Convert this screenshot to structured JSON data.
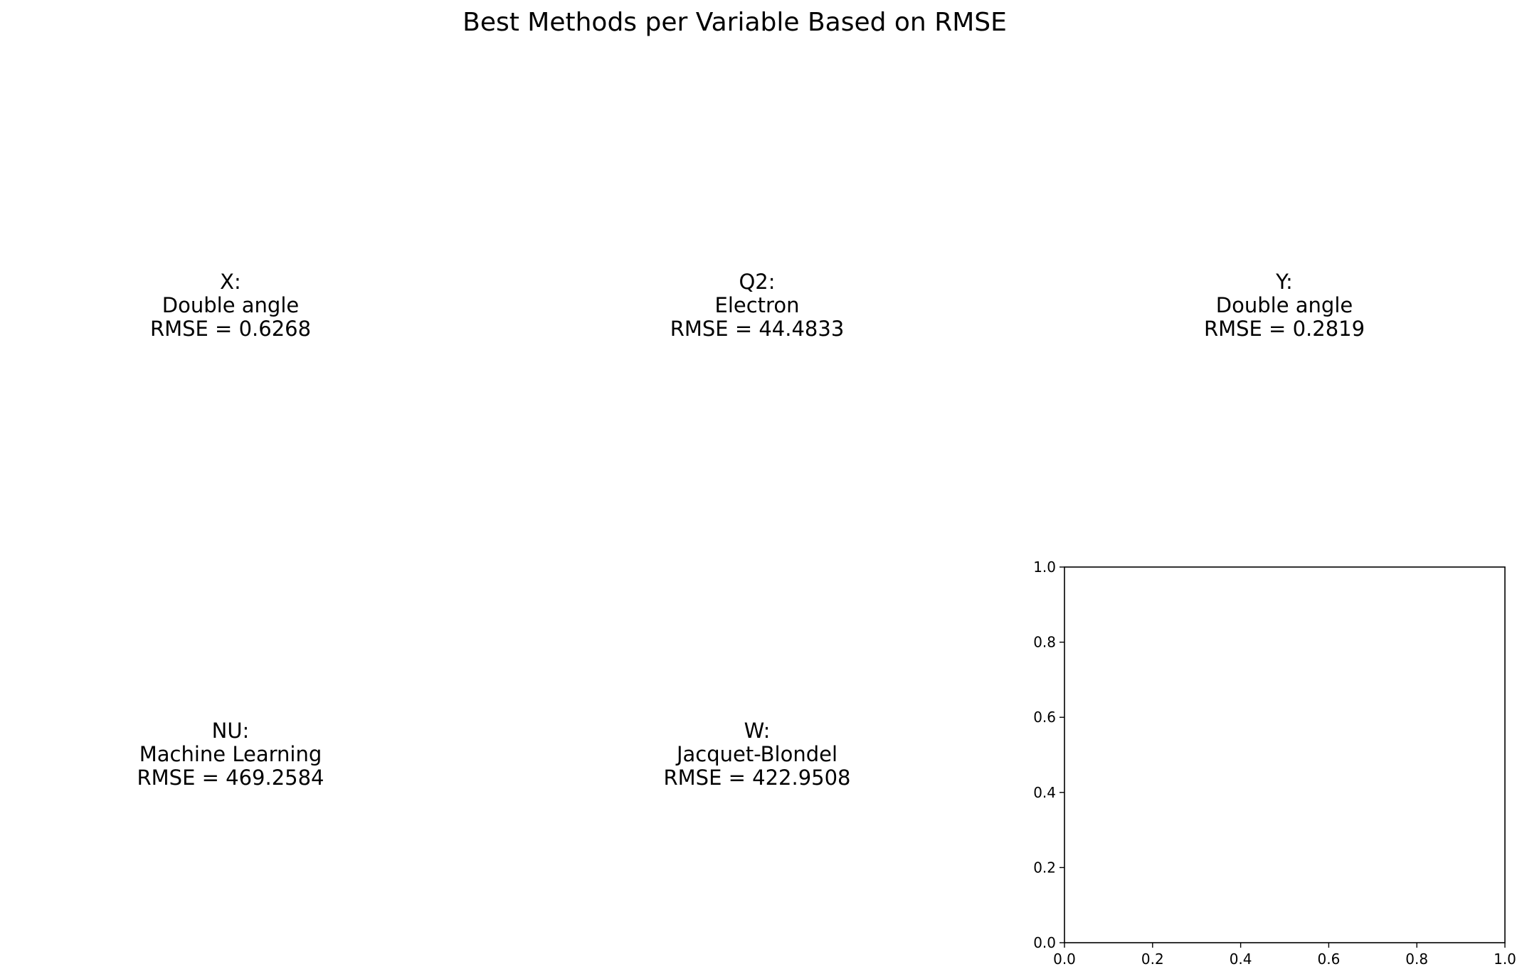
{
  "chart_data": {
    "type": "table",
    "title": "Best Methods per Variable Based on RMSE",
    "panels": [
      {
        "variable": "X:",
        "method": "Double angle",
        "rmse": "RMSE = 0.6268"
      },
      {
        "variable": "Q2:",
        "method": "Electron",
        "rmse": "RMSE = 44.4833"
      },
      {
        "variable": "Y:",
        "method": "Double angle",
        "rmse": "RMSE = 0.2819"
      },
      {
        "variable": "NU:",
        "method": "Machine Learning",
        "rmse": "RMSE = 469.2584"
      },
      {
        "variable": "W:",
        "method": "Jacquet-Blondel",
        "rmse": "RMSE = 422.9508"
      }
    ],
    "empty_axes": {
      "xlim": [
        0.0,
        1.0
      ],
      "ylim": [
        0.0,
        1.0
      ],
      "xticks": [
        "0.0",
        "0.2",
        "0.4",
        "0.6",
        "0.8",
        "1.0"
      ],
      "yticks": [
        "0.0",
        "0.2",
        "0.4",
        "0.6",
        "0.8",
        "1.0"
      ],
      "grid": false
    }
  }
}
